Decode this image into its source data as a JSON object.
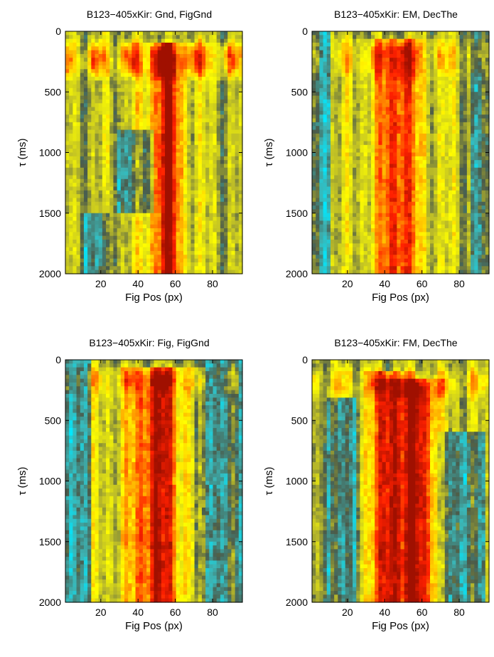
{
  "chart_data": [
    {
      "type": "heatmap",
      "title": "B123−405xKir: Gnd, FigGnd",
      "xlabel": "Fig Pos (px)",
      "ylabel": "τ (ms)",
      "xlim": [
        1,
        96
      ],
      "ylim": [
        2000,
        0
      ],
      "xticks": [
        "20",
        "40",
        "60",
        "80"
      ],
      "yticks": [
        "0",
        "500",
        "1000",
        "1500",
        "2000"
      ],
      "colormap": [
        "#00e8ff",
        "#3cb4b4",
        "#4a5a4a",
        "#bcbc28",
        "#ffff00",
        "#ff9a00",
        "#ff2000",
        "#a01000"
      ],
      "grid": false,
      "features": {
        "top_band": {
          "y": [
            50,
            420
          ],
          "level": 0.78
        },
        "ridges": [
          {
            "x": 55,
            "width": 7,
            "level": 0.75,
            "y_start": 100
          }
        ],
        "cool_regions": [
          {
            "x": [
              10,
              24
            ],
            "y": [
              1500,
              2000
            ]
          },
          {
            "x": [
              28,
              48
            ],
            "y": [
              800,
              1500
            ]
          }
        ]
      }
    },
    {
      "type": "heatmap",
      "title": "B123−405xKir: EM, DecThe",
      "xlabel": "Fig Pos (px)",
      "ylabel": "τ (ms)",
      "xlim": [
        1,
        96
      ],
      "ylim": [
        2000,
        0
      ],
      "xticks": [
        "20",
        "40",
        "60",
        "80"
      ],
      "yticks": [
        "0",
        "500",
        "1000",
        "1500",
        "2000"
      ],
      "colormap": [
        "#00e8ff",
        "#3cb4b4",
        "#4a5a4a",
        "#bcbc28",
        "#ffff00",
        "#ff9a00",
        "#ff2000",
        "#a01000"
      ],
      "grid": false,
      "features": {
        "top_band": {
          "y": [
            40,
            400
          ],
          "level": 0.35
        },
        "ridges": [
          {
            "x": 47,
            "width": 9,
            "level": 0.6,
            "y_start": 60
          }
        ],
        "cool_regions": [
          {
            "x": [
              1,
              10
            ],
            "y": [
              0,
              2000
            ]
          },
          {
            "x": [
              86,
              96
            ],
            "y": [
              0,
              2000
            ]
          }
        ]
      }
    },
    {
      "type": "heatmap",
      "title": "B123−405xKir: Fig, FigGnd",
      "xlabel": "Fig Pos (px)",
      "ylabel": "τ (ms)",
      "xlim": [
        1,
        96
      ],
      "ylim": [
        2000,
        0
      ],
      "xticks": [
        "20",
        "40",
        "60",
        "80"
      ],
      "yticks": [
        "0",
        "500",
        "1000",
        "1500",
        "2000"
      ],
      "colormap": [
        "#00e8ff",
        "#3cb4b4",
        "#4a5a4a",
        "#bcbc28",
        "#ffff00",
        "#ff9a00",
        "#ff2000",
        "#a01000"
      ],
      "grid": false,
      "features": {
        "top_band": {
          "y": [
            40,
            300
          ],
          "level": 0.3
        },
        "ridges": [
          {
            "x": 50,
            "width": 11,
            "level": 0.7,
            "y_start": 50
          }
        ],
        "cool_regions": [
          {
            "x": [
              1,
              14
            ],
            "y": [
              0,
              2000
            ]
          },
          {
            "x": [
              70,
              96
            ],
            "y": [
              0,
              2000
            ]
          }
        ]
      }
    },
    {
      "type": "heatmap",
      "title": "B123−405xKir: FM, DecThe",
      "xlabel": "Fig Pos (px)",
      "ylabel": "τ (ms)",
      "xlim": [
        1,
        96
      ],
      "ylim": [
        2000,
        0
      ],
      "xticks": [
        "20",
        "40",
        "60",
        "80"
      ],
      "yticks": [
        "0",
        "500",
        "1000",
        "1500",
        "2000"
      ],
      "colormap": [
        "#00e8ff",
        "#3cb4b4",
        "#4a5a4a",
        "#bcbc28",
        "#ffff00",
        "#ff9a00",
        "#ff2000",
        "#a01000"
      ],
      "grid": false,
      "features": {
        "top_band": {
          "y": [
            40,
            350
          ],
          "level": 0.4
        },
        "ridges": [
          {
            "x": 42,
            "width": 6,
            "level": 0.72,
            "y_start": 100
          },
          {
            "x": 58,
            "width": 7,
            "level": 0.75,
            "y_start": 150
          }
        ],
        "cool_regions": [
          {
            "x": [
              68,
              94
            ],
            "y": [
              600,
              2000
            ]
          },
          {
            "x": [
              8,
              24
            ],
            "y": [
              300,
              2000
            ]
          }
        ]
      }
    }
  ]
}
